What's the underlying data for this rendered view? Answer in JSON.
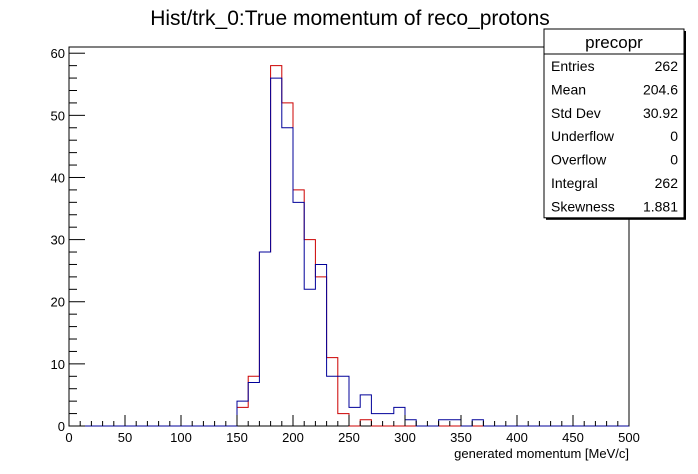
{
  "chart_data": {
    "type": "bar",
    "title": "Hist/trk_0:True momentum of reco_protons",
    "xlabel": "generated momentum [MeV/c]",
    "ylabel": "",
    "xlim": [
      0,
      500
    ],
    "ylim": [
      0,
      61
    ],
    "x_ticks": [
      0,
      50,
      100,
      150,
      200,
      250,
      300,
      350,
      400,
      450,
      500
    ],
    "y_ticks": [
      0,
      10,
      20,
      30,
      40,
      50,
      60
    ],
    "bin_width": 10,
    "bin_starts": [
      150,
      160,
      170,
      180,
      190,
      200,
      210,
      220,
      230,
      240,
      250,
      260,
      270,
      280,
      290,
      300,
      310,
      320,
      330,
      340,
      350,
      360,
      370
    ],
    "series": [
      {
        "color": "#cc0000",
        "values": [
          3,
          8,
          28,
          58,
          52,
          38,
          30,
          24,
          11,
          2,
          0,
          1,
          0,
          0,
          0,
          0,
          0,
          0,
          0,
          0,
          0,
          0,
          0
        ]
      },
      {
        "color": "#000099",
        "values": [
          4,
          7,
          28,
          56,
          48,
          36,
          22,
          26,
          8,
          8,
          3,
          5,
          2,
          2,
          3,
          1,
          0,
          0,
          1,
          1,
          0,
          1,
          0
        ]
      }
    ],
    "grid": false
  },
  "stats_box": {
    "title": "precopr",
    "rows": [
      {
        "label": "Entries",
        "value": "262"
      },
      {
        "label": "Mean",
        "value": "204.6"
      },
      {
        "label": "Std Dev",
        "value": "30.92"
      },
      {
        "label": "Underflow",
        "value": "0"
      },
      {
        "label": "Overflow",
        "value": "0"
      },
      {
        "label": "Integral",
        "value": "262"
      },
      {
        "label": "Skewness",
        "value": "1.881"
      }
    ]
  }
}
